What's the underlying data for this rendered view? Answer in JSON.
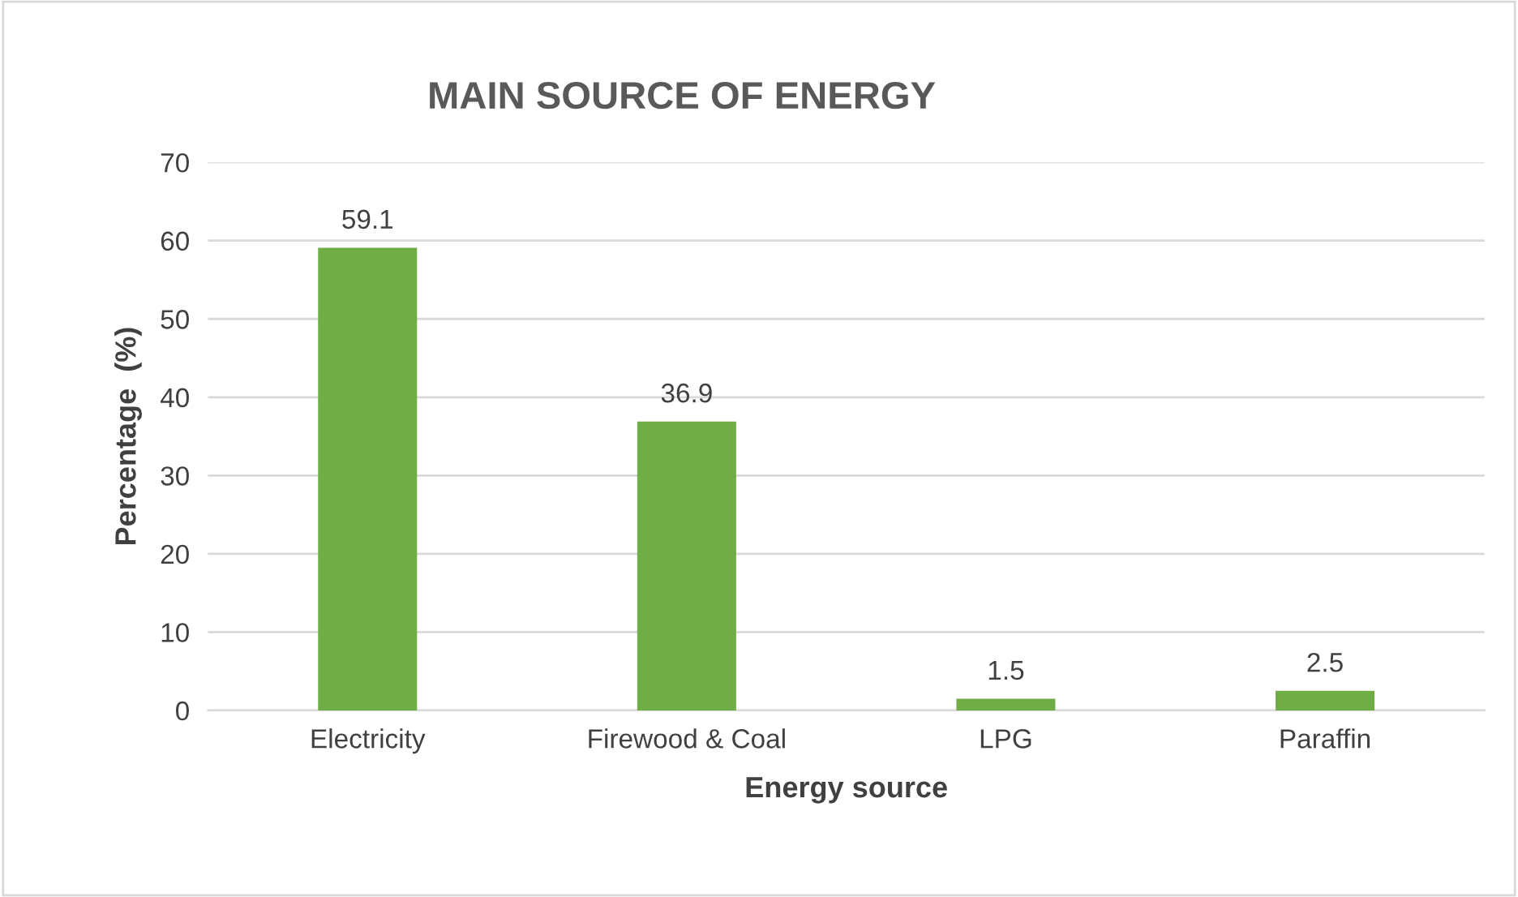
{
  "chart_data": {
    "type": "bar",
    "title": "MAIN SOURCE OF ENERGY",
    "xlabel": "Energy source",
    "ylabel": "Percentage  (%)",
    "categories": [
      "Electricity",
      "Firewood & Coal",
      "LPG",
      "Paraffin"
    ],
    "values": [
      59.1,
      36.9,
      1.5,
      2.5
    ],
    "color": "#70ad47",
    "ylim": [
      0,
      70
    ],
    "yticks": [
      0,
      10,
      20,
      30,
      40,
      50,
      60,
      70
    ],
    "grid": "y",
    "data_labels": true
  }
}
